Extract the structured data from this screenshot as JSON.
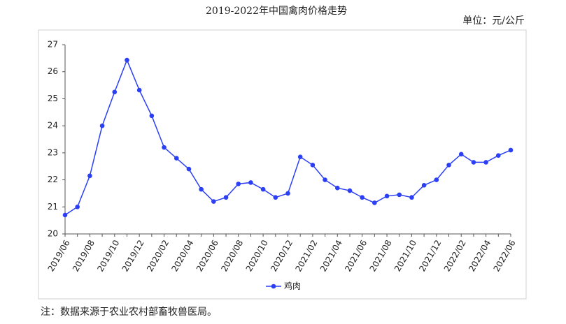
{
  "chart_data": {
    "type": "line",
    "title": "2019-2022年中国禽肉价格走势",
    "unit": "单位：元/公斤",
    "note": "注：数据来源于农业农村部畜牧兽医局。",
    "categories": [
      "2019/06",
      null,
      "2019/08",
      null,
      "2019/10",
      null,
      "2019/12",
      null,
      "2020/02",
      null,
      "2020/04",
      null,
      "2020/06",
      null,
      "2020/08",
      null,
      "2020/10",
      null,
      "2020/12",
      null,
      "2021/02",
      null,
      "2021/04",
      null,
      "2021/06",
      null,
      "2021/08",
      null,
      "2021/10",
      null,
      "2021/12",
      null,
      "2022/02",
      null,
      "2022/04",
      null,
      "2022/06"
    ],
    "series": [
      {
        "name": "鸡肉",
        "color": "#2b3ff5",
        "values": [
          20.7,
          21.0,
          22.15,
          24.0,
          25.25,
          26.43,
          25.32,
          24.37,
          23.2,
          22.8,
          22.4,
          21.65,
          21.2,
          21.35,
          21.85,
          21.9,
          21.65,
          21.35,
          21.5,
          22.85,
          22.55,
          22.0,
          21.7,
          21.6,
          21.35,
          21.15,
          21.4,
          21.45,
          21.35,
          21.8,
          22.0,
          22.55,
          22.95,
          22.65,
          22.65,
          22.9,
          23.1
        ]
      }
    ],
    "ylim": [
      20,
      27
    ],
    "yticks": [
      20,
      21,
      22,
      23,
      24,
      25,
      26,
      27
    ],
    "legend": "bottom"
  }
}
